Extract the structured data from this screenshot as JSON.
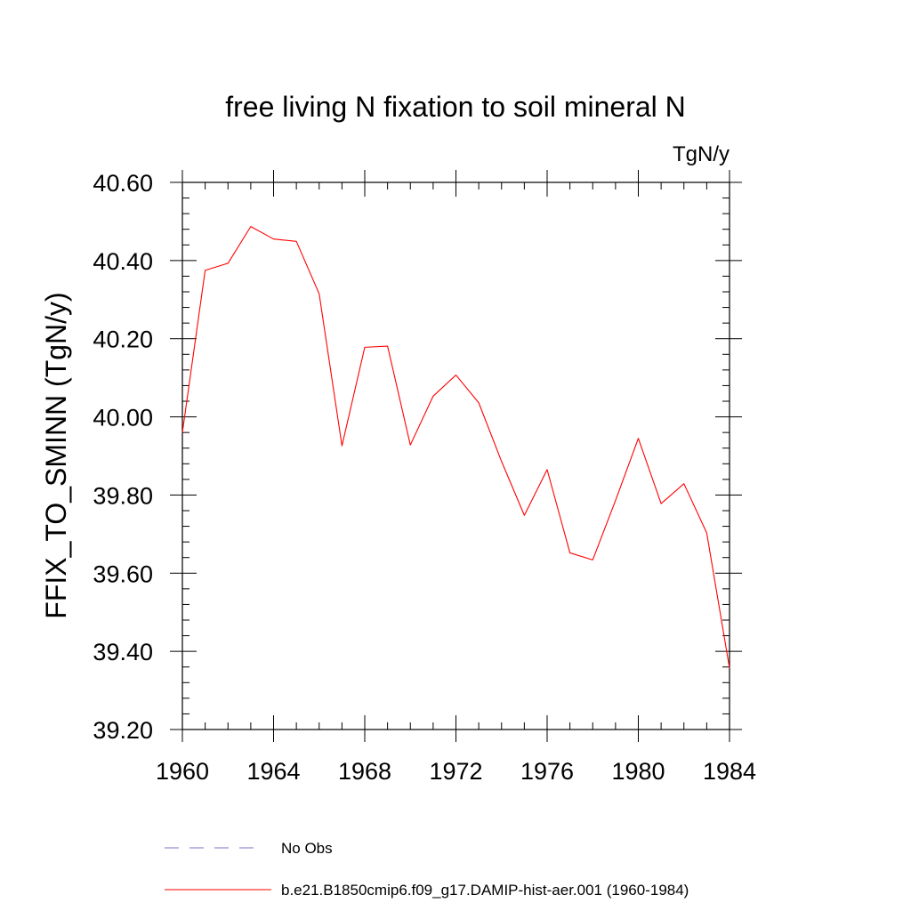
{
  "chart_data": {
    "type": "line",
    "title": "free living N fixation to soil mineral N",
    "units": "TgN/y",
    "ylabel": "FFIX_TO_SMINN  (TgN/y)",
    "xlabel": "",
    "xlim": [
      1960,
      1984
    ],
    "ylim": [
      39.2,
      40.6
    ],
    "xticks": [
      "1960",
      "1964",
      "1968",
      "1972",
      "1976",
      "1980",
      "1984"
    ],
    "yticks": [
      "39.20",
      "39.40",
      "39.60",
      "39.80",
      "40.00",
      "40.20",
      "40.40",
      "40.60"
    ],
    "grid": false,
    "legend_position": "bottom",
    "series": [
      {
        "name": "No Obs",
        "color": "#7b6fc4",
        "dash": "dashed",
        "x": [],
        "values": []
      },
      {
        "name": "b.e21.B1850cmip6.f09_g17.DAMIP-hist-aer.001 (1960-1984)",
        "color": "#ff0000",
        "dash": "solid",
        "x": [
          1960,
          1961,
          1962,
          1963,
          1964,
          1965,
          1966,
          1967,
          1968,
          1969,
          1970,
          1971,
          1972,
          1973,
          1974,
          1975,
          1976,
          1977,
          1978,
          1979,
          1980,
          1981,
          1982,
          1983,
          1984
        ],
        "values": [
          39.96,
          40.375,
          40.393,
          40.487,
          40.455,
          40.449,
          40.315,
          39.926,
          40.178,
          40.181,
          39.928,
          40.053,
          40.107,
          40.036,
          39.886,
          39.748,
          39.865,
          39.652,
          39.634,
          39.786,
          39.945,
          39.778,
          39.829,
          39.703,
          39.357
        ]
      }
    ]
  }
}
